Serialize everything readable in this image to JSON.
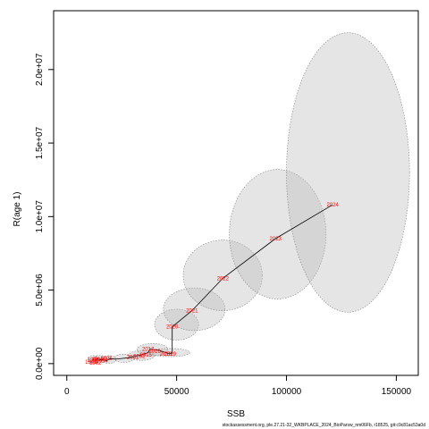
{
  "chart_data": {
    "type": "scatter",
    "title": "",
    "xlabel": "SSB",
    "ylabel": "R(age 1)",
    "xlim": [
      -6000,
      160000
    ],
    "ylim": [
      -800000,
      24000000
    ],
    "x_ticks": [
      0,
      50000,
      100000,
      150000
    ],
    "x_tick_labels": [
      "0",
      "50000",
      "100000",
      "150000"
    ],
    "y_ticks": [
      0,
      5000000,
      10000000,
      15000000,
      20000000
    ],
    "y_tick_labels": [
      "0.0e+00",
      "5.0e+06",
      "1.0e+07",
      "1.5e+07",
      "2.0e+07"
    ],
    "grid": false,
    "colors": {
      "ellipse_fill": "#bdbdbd",
      "ellipse_stroke": "#808080",
      "path": "#000000",
      "year_label": "#ff0000"
    },
    "points": [
      {
        "year": "1991",
        "x": 12000,
        "y": 300000
      },
      {
        "year": "1992",
        "x": 13000,
        "y": 200000
      },
      {
        "year": "1993",
        "x": 14000,
        "y": 350000
      },
      {
        "year": "1994",
        "x": 15000,
        "y": 250000
      },
      {
        "year": "1995",
        "x": 16500,
        "y": 300000
      },
      {
        "year": "1996",
        "x": 18000,
        "y": 200000
      },
      {
        "year": "1997",
        "x": 20000,
        "y": 350000
      },
      {
        "year": "1998",
        "x": 22000,
        "y": 300000
      },
      {
        "year": "1999",
        "x": 25000,
        "y": 350000
      },
      {
        "year": "2000",
        "x": 28000,
        "y": 400000
      },
      {
        "year": "2001",
        "x": 31000,
        "y": 500000
      },
      {
        "year": "2002",
        "x": 34000,
        "y": 600000
      },
      {
        "year": "2015",
        "x": 37000,
        "y": 750000
      },
      {
        "year": "2017",
        "x": 38000,
        "y": 1000000
      },
      {
        "year": "2016",
        "x": 42000,
        "y": 900000
      },
      {
        "year": "2018",
        "x": 46000,
        "y": 700000
      },
      {
        "year": "2019",
        "x": 48000,
        "y": 700000
      },
      {
        "year": "2020",
        "x": 48000,
        "y": 2500000
      },
      {
        "year": "2021",
        "x": 57000,
        "y": 3600000
      },
      {
        "year": "2022",
        "x": 71000,
        "y": 5800000
      },
      {
        "year": "2023",
        "x": 95000,
        "y": 8500000
      },
      {
        "year": "2024",
        "x": 121000,
        "y": 10800000
      }
    ],
    "labeled_points": [
      {
        "label": "2020",
        "x": 48000,
        "y": 2500000
      },
      {
        "label": "2021",
        "x": 57000,
        "y": 3600000
      },
      {
        "label": "2022",
        "x": 71000,
        "y": 5800000
      },
      {
        "label": "2023",
        "x": 95000,
        "y": 8500000
      },
      {
        "label": "2024",
        "x": 121000,
        "y": 10800000
      },
      {
        "label": "2017",
        "x": 37000,
        "y": 1000000
      },
      {
        "label": "2016",
        "x": 40000,
        "y": 850000
      },
      {
        "label": "2019",
        "x": 47000,
        "y": 650000
      },
      {
        "label": "2018",
        "x": 45000,
        "y": 650000
      },
      {
        "label": "2015",
        "x": 36000,
        "y": 600000
      },
      {
        "label": "2002",
        "x": 33000,
        "y": 500000
      },
      {
        "label": "2001",
        "x": 30000,
        "y": 450000
      },
      {
        "label": "1995",
        "x": 18000,
        "y": 350000
      },
      {
        "label": "1998",
        "x": 14000,
        "y": 300000
      },
      {
        "label": "1993",
        "x": 12000,
        "y": 250000
      },
      {
        "label": "1991",
        "x": 11000,
        "y": 100000
      },
      {
        "label": "1992",
        "x": 13000,
        "y": 50000
      },
      {
        "label": "1994",
        "x": 16000,
        "y": 200000
      }
    ],
    "ellipses": [
      {
        "year": "1991",
        "cx": 12000,
        "cy": 300000,
        "rx": 2500,
        "ry": 250000,
        "angle": 0
      },
      {
        "year": "1993",
        "cx": 15000,
        "cy": 300000,
        "rx": 3000,
        "ry": 260000,
        "angle": 0
      },
      {
        "year": "1996",
        "cx": 19000,
        "cy": 280000,
        "rx": 3500,
        "ry": 260000,
        "angle": 0
      },
      {
        "year": "1999",
        "cx": 26000,
        "cy": 360000,
        "rx": 4500,
        "ry": 280000,
        "angle": 0
      },
      {
        "year": "2002",
        "cx": 34000,
        "cy": 550000,
        "rx": 6000,
        "ry": 330000,
        "angle": 0
      },
      {
        "year": "2017",
        "cx": 39000,
        "cy": 950000,
        "rx": 7000,
        "ry": 420000,
        "angle": 0
      },
      {
        "year": "2019",
        "cx": 47000,
        "cy": 750000,
        "rx": 9000,
        "ry": 280000,
        "angle": 0
      },
      {
        "year": "2020",
        "cx": 50000,
        "cy": 2650000,
        "rx": 10000,
        "ry": 1050000,
        "angle": 0
      },
      {
        "year": "2021",
        "cx": 58000,
        "cy": 3700000,
        "rx": 14000,
        "ry": 1450000,
        "angle": 0
      },
      {
        "year": "2022",
        "cx": 71000,
        "cy": 6000000,
        "rx": 18000,
        "ry": 2400000,
        "angle": 0
      },
      {
        "year": "2023",
        "cx": 96000,
        "cy": 8800000,
        "rx": 22000,
        "ry": 4400000,
        "angle": 0
      },
      {
        "year": "2024",
        "cx": 128000,
        "cy": 13000000,
        "rx": 28000,
        "ry": 9500000,
        "angle": 0
      }
    ]
  },
  "footer": {
    "caption": "stockassessment.org, ple.27.21-32_WKBPLACE_2024_BioParsw_nm06Fb, r18525, git:c9c81ac53a0d"
  }
}
